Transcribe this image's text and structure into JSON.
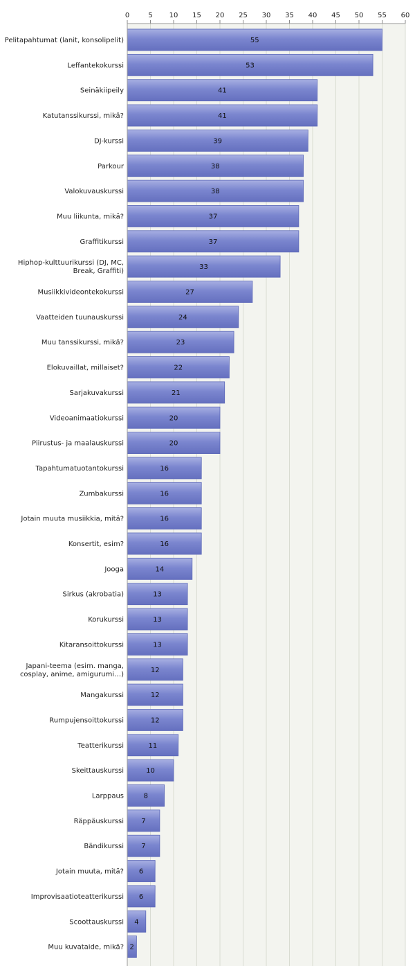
{
  "chart_data": {
    "type": "bar",
    "orientation": "horizontal",
    "title": "",
    "xlabel": "",
    "ylabel": "",
    "xlim": [
      0,
      60
    ],
    "ticks": [
      0,
      5,
      10,
      15,
      20,
      25,
      30,
      35,
      40,
      45,
      50,
      55,
      60
    ],
    "grid": true,
    "colors": {
      "bar": "#7b86cf",
      "bar_dark": "#5c68b8",
      "bar_light": "#a7afe2",
      "plot_bg": "#f3f4ef",
      "grid": "#d9dcd2"
    },
    "categories": [
      "Pelitapahtumat (lanit, konsolipelit)",
      "Leffantekokurssi",
      "Seinäkiipeily",
      "Katutanssikurssi, mikä?",
      "DJ-kurssi",
      "Parkour",
      "Valokuvauskurssi",
      "Muu liikunta, mikä?",
      "Graffitikurssi",
      "Hiphop-kulttuurikurssi (DJ, MC, Break, Graffiti)",
      "Musiikkivideontekokurssi",
      "Vaatteiden tuunauskurssi",
      "Muu tanssikurssi, mikä?",
      "Elokuvaillat, millaiset?",
      "Sarjakuvakurssi",
      "Videoanimaatiokurssi",
      "Piirustus- ja maalauskurssi",
      "Tapahtumatuotantokurssi",
      "Zumbakurssi",
      "Jotain muuta musiikkia, mitä?",
      "Konsertit, esim?",
      "Jooga",
      "Sirkus (akrobatia)",
      "Korukurssi",
      "Kitaransoittokurssi",
      "Japani-teema (esim. manga, cosplay, anime, amigurumi…)",
      "Mangakurssi",
      "Rumpujensoittokurssi",
      "Teatterikurssi",
      "Skeittauskurssi",
      "Larppaus",
      "Räppäuskurssi",
      "Bändikurssi",
      "Jotain muuta, mitä?",
      "Improvisaatioteatterikurssi",
      "Scoottauskurssi",
      "Muu kuvataide, mikä?"
    ],
    "category_lines": [
      [
        "Pelitapahtumat (lanit, konsolipelit)"
      ],
      [
        "Leffantekokurssi"
      ],
      [
        "Seinäkiipeily"
      ],
      [
        "Katutanssikurssi, mikä?"
      ],
      [
        "DJ-kurssi"
      ],
      [
        "Parkour"
      ],
      [
        "Valokuvauskurssi"
      ],
      [
        "Muu liikunta, mikä?"
      ],
      [
        "Graffitikurssi"
      ],
      [
        "Hiphop-kulttuurikurssi (DJ, MC,",
        "Break, Graffiti)"
      ],
      [
        "Musiikkivideontekokurssi"
      ],
      [
        "Vaatteiden tuunauskurssi"
      ],
      [
        "Muu tanssikurssi, mikä?"
      ],
      [
        "Elokuvaillat, millaiset?"
      ],
      [
        "Sarjakuvakurssi"
      ],
      [
        "Videoanimaatiokurssi"
      ],
      [
        "Piirustus- ja maalauskurssi"
      ],
      [
        "Tapahtumatuotantokurssi"
      ],
      [
        "Zumbakurssi"
      ],
      [
        "Jotain muuta musiikkia, mitä?"
      ],
      [
        "Konsertit, esim?"
      ],
      [
        "Jooga"
      ],
      [
        "Sirkus (akrobatia)"
      ],
      [
        "Korukurssi"
      ],
      [
        "Kitaransoittokurssi"
      ],
      [
        "Japani-teema (esim. manga,",
        "cosplay, anime, amigurumi…)"
      ],
      [
        "Mangakurssi"
      ],
      [
        "Rumpujensoittokurssi"
      ],
      [
        "Teatterikurssi"
      ],
      [
        "Skeittauskurssi"
      ],
      [
        "Larppaus"
      ],
      [
        "Räppäuskurssi"
      ],
      [
        "Bändikurssi"
      ],
      [
        "Jotain muuta, mitä?"
      ],
      [
        "Improvisaatioteatterikurssi"
      ],
      [
        "Scoottauskurssi"
      ],
      [
        "Muu kuvataide, mikä?"
      ]
    ],
    "values": [
      55,
      53,
      41,
      41,
      39,
      38,
      38,
      37,
      37,
      33,
      27,
      24,
      23,
      22,
      21,
      20,
      20,
      16,
      16,
      16,
      16,
      14,
      13,
      13,
      13,
      12,
      12,
      12,
      11,
      10,
      8,
      7,
      7,
      6,
      6,
      4,
      2
    ]
  }
}
